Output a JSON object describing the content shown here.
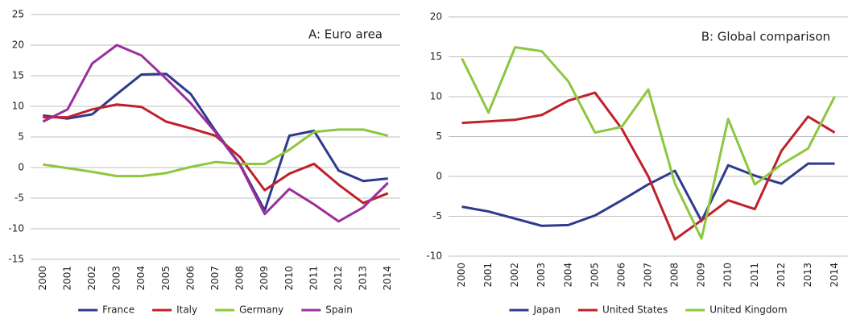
{
  "chart_data": [
    {
      "type": "line",
      "title": "A: Euro area",
      "categories": [
        "2000",
        "2001",
        "2002",
        "2003",
        "2004",
        "2005",
        "2006",
        "2007",
        "2008",
        "2009",
        "2010",
        "2011",
        "2012",
        "2013",
        "2014"
      ],
      "series": [
        {
          "name": "France",
          "color": "#2e3a8c",
          "values": [
            8.5,
            8,
            8.7,
            12,
            15.2,
            15.3,
            12,
            6,
            0.5,
            -7,
            5.2,
            6,
            -0.5,
            -2.2,
            -1.8
          ]
        },
        {
          "name": "Italy",
          "color": "#c0202a",
          "values": [
            8.2,
            8.2,
            9.5,
            10.3,
            9.9,
            7.5,
            6.4,
            5.2,
            1.7,
            -3.7,
            -1,
            0.6,
            -2.8,
            -5.8,
            -4.2
          ]
        },
        {
          "name": "Germany",
          "color": "#8dc63f",
          "values": [
            0.5,
            -0.1,
            -0.7,
            -1.4,
            -1.4,
            -0.9,
            0.1,
            0.9,
            0.6,
            0.6,
            2.9,
            5.8,
            6.2,
            6.2,
            5.2
          ]
        },
        {
          "name": "Spain",
          "color": "#9b2f9b",
          "values": [
            7.5,
            9.5,
            17,
            20,
            18.3,
            14.5,
            10.5,
            5.8,
            0.4,
            -7.6,
            -3.5,
            -6,
            -8.8,
            -6.5,
            -2.5
          ]
        }
      ],
      "ylim": [
        -15,
        25
      ],
      "yticks": [
        -15,
        -10,
        -5,
        0,
        5,
        10,
        15,
        20,
        25
      ],
      "grid": true,
      "legend": "bottom"
    },
    {
      "type": "line",
      "title": "B: Global comparison",
      "categories": [
        "2000",
        "2001",
        "2002",
        "2003",
        "2004",
        "2005",
        "2006",
        "2007",
        "2008",
        "2009",
        "2010",
        "2011",
        "2012",
        "2013",
        "2014"
      ],
      "series": [
        {
          "name": "Japan",
          "color": "#2e3a8c",
          "values": [
            -3.8,
            -4.4,
            -5.3,
            -6.2,
            -6.1,
            -4.9,
            -3,
            -1,
            0.7,
            -5.6,
            1.4,
            0.1,
            -0.9,
            1.6,
            1.6
          ]
        },
        {
          "name": "United States",
          "color": "#c0202a",
          "values": [
            6.7,
            6.9,
            7.1,
            7.7,
            9.5,
            10.5,
            6,
            0,
            -7.9,
            -5.5,
            -3,
            -4.1,
            3.2,
            7.5,
            5.5
          ]
        },
        {
          "name": "United Kingdom",
          "color": "#8dc63f",
          "values": [
            14.8,
            8,
            16.2,
            15.7,
            11.9,
            5.5,
            6.2,
            10.9,
            -0.9,
            -7.8,
            7.2,
            -1,
            1.5,
            3.5,
            10
          ]
        }
      ],
      "ylim": [
        -10,
        20
      ],
      "yticks": [
        -10,
        -5,
        0,
        5,
        10,
        15,
        20
      ],
      "grid": true,
      "legend": "bottom"
    }
  ]
}
